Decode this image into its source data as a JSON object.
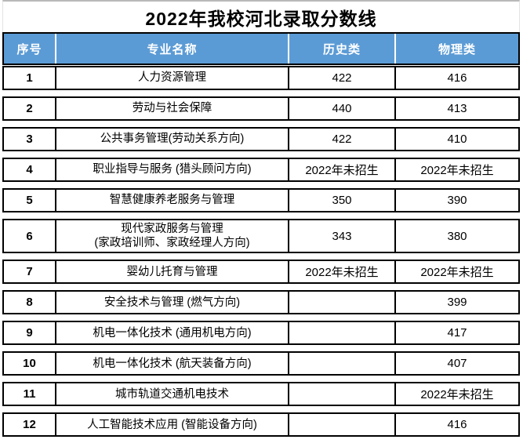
{
  "title": "2022年我校河北录取分数线",
  "colors": {
    "header_bg": "#5B9BD5",
    "header_text": "#ffffff",
    "body_border": "#000000",
    "title_top_border": "#b9b9b9"
  },
  "table": {
    "headers": [
      "序号",
      "专业名称",
      "历史类",
      "物理类"
    ],
    "no_enrollment_label": "2022年未招生",
    "rows": [
      {
        "no": "1",
        "major": "人力资源管理",
        "history": "422",
        "physics": "416"
      },
      {
        "no": "2",
        "major": "劳动与社会保障",
        "history": "440",
        "physics": "413"
      },
      {
        "no": "3",
        "major": "公共事务管理(劳动关系方向)",
        "history": "422",
        "physics": "410"
      },
      {
        "no": "4",
        "major": "职业指导与服务 (猎头顾问方向)",
        "history": "2022年未招生",
        "physics": "2022年未招生"
      },
      {
        "no": "5",
        "major": "智慧健康养老服务与管理",
        "history": "350",
        "physics": "390"
      },
      {
        "no": "6",
        "major": "现代家政服务与管理\n(家政培训师、家政经理人方向)",
        "history": "343",
        "physics": "380"
      },
      {
        "no": "7",
        "major": "婴幼儿托育与管理",
        "history": "2022年未招生",
        "physics": "2022年未招生"
      },
      {
        "no": "8",
        "major": "安全技术与管理 (燃气方向)",
        "history": "",
        "physics": "399"
      },
      {
        "no": "9",
        "major": "机电一体化技术 (通用机电方向)",
        "history": "",
        "physics": "417"
      },
      {
        "no": "10",
        "major": "机电一体化技术 (航天装备方向)",
        "history": "",
        "physics": "407"
      },
      {
        "no": "11",
        "major": "城市轨道交通机电技术",
        "history": "",
        "physics": "2022年未招生"
      },
      {
        "no": "12",
        "major": "人工智能技术应用 (智能设备方向)",
        "history": "",
        "physics": "416"
      }
    ]
  }
}
